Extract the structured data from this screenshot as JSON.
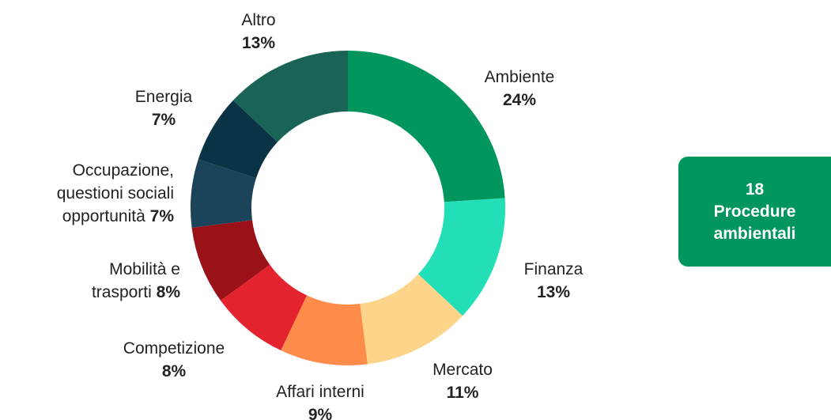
{
  "chart_data": {
    "type": "donut",
    "categories": [
      "Ambiente",
      "Finanza",
      "Mercato",
      "Affari interni",
      "Competizione",
      "Mobilità e trasporti",
      "Occupazione, questioni sociali opportunità",
      "Energia",
      "Altro"
    ],
    "values": [
      24,
      13,
      11,
      9,
      8,
      8,
      7,
      7,
      13
    ],
    "value_labels": [
      "24%",
      "13%",
      "11%",
      "9%",
      "8%",
      "8%",
      "7%",
      "7%",
      "13%"
    ],
    "colors": [
      "#00965e",
      "#22dfb7",
      "#fdd58a",
      "#ff8c4b",
      "#e3242f",
      "#9b1118",
      "#1b435a",
      "#0a3446",
      "#1a6457"
    ],
    "total_count": 18,
    "total_label": "Procedure ambientali"
  }
}
